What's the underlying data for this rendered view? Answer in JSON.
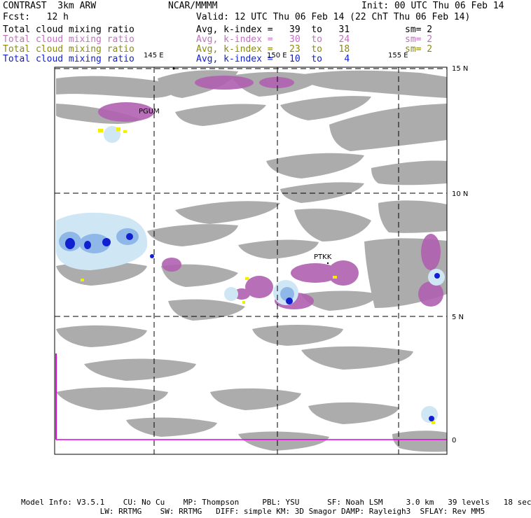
{
  "header": {
    "model": "CONTRAST  3km ARW",
    "org": "NCAR/MMMM",
    "init": "Init: 00 UTC Thu 06 Feb 14",
    "fcst": "Fcst:   12 h",
    "valid": "Valid: 12 UTC Thu 06 Feb 14 (22 ChT Thu 06 Feb 14)"
  },
  "fields": [
    {
      "name": "Total cloud mixing ratio",
      "range": "Avg, k-index =   39  to   31",
      "sm": "sm= 2",
      "color": "#000000"
    },
    {
      "name": "Total cloud mixing ratio",
      "range": "Avg, k-index =   30  to   24",
      "sm": "sm= 2",
      "color": "#c070c0"
    },
    {
      "name": "Total cloud mixing ratio",
      "range": "Avg, k-index =   23  to   18",
      "sm": "sm= 2",
      "color": "#8a8a10"
    },
    {
      "name": "Total cloud mixing ratio",
      "range": "Avg, k-index =   10  to    4",
      "sm": "",
      "color": "#1020d0"
    }
  ],
  "map": {
    "lon_labels": [
      "145 E",
      "150 E",
      "155 E"
    ],
    "lat_labels": [
      "15 N",
      "10 N",
      "5 N",
      "0"
    ],
    "stations": [
      "PGUM",
      "PTKK"
    ]
  },
  "footer": {
    "line1": "Model Info: V3.5.1    CU: No Cu    MP: Thompson     PBL: YSU      SF: Noah LSM     3.0 km   39 levels   18 sec",
    "line2": "                 LW: RRTMG    SW: RRTMG   DIFF: simple KM: 3D Smagor DAMP: Rayleigh3  SFLAY: Rev MM5"
  },
  "colors": {
    "gray_cloud": "#a8a8a8",
    "purple_cloud": "#b060b0",
    "yellow_cloud": "#f0f000",
    "blue_light": "#cfe6f5",
    "blue_dark": "#1020d0",
    "equator_line": "#e000e0"
  }
}
